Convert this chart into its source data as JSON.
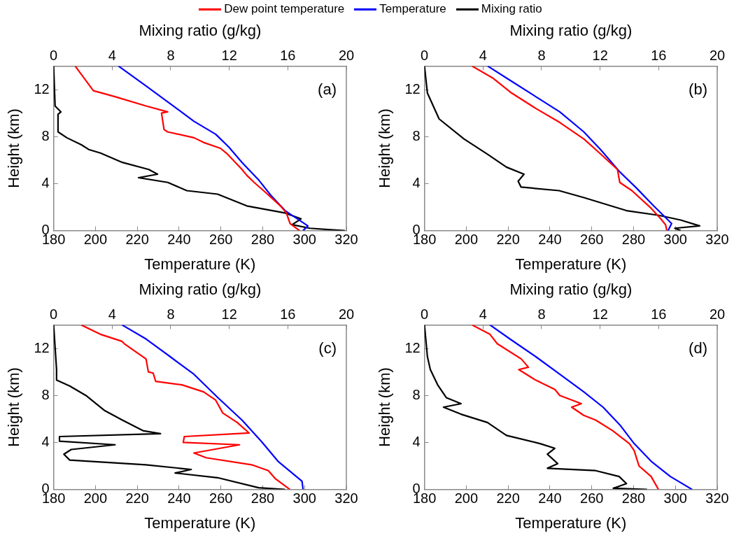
{
  "chart_data": [
    {
      "type": "line",
      "xlabel": "Temperature (K)",
      "x2label": "Mixing ratio (g/kg)",
      "ylabel": "Height (km)",
      "xlim": [
        180,
        320
      ],
      "xticks": [
        180,
        200,
        220,
        240,
        260,
        280,
        300,
        320
      ],
      "x2lim": [
        0,
        20
      ],
      "x2ticks": [
        0,
        4,
        8,
        12,
        16,
        20
      ],
      "ylim": [
        0,
        14
      ],
      "yticks": [
        0,
        4,
        8,
        12
      ],
      "grid": false,
      "legend": "top",
      "marker": "none",
      "annotations": [
        "(a)"
      ],
      "series": [
        {
          "name": "Dew point temperature",
          "color": "#ff0000",
          "x": [
            190.3,
            199,
            209.3,
            224.2,
            234.5,
            231.6,
            232.8,
            234.5,
            247.1,
            251.7,
            259.8,
            263.2,
            270.1,
            272.4,
            275.9,
            280.4,
            288.5,
            291.3,
            293.1,
            297.6
          ],
          "values": [
            14,
            11.9,
            11.4,
            10.6,
            10.1,
            10,
            8.6,
            8.4,
            7.9,
            7.5,
            7,
            6.5,
            5.2,
            4.7,
            4.1,
            3.4,
            2.1,
            1.5,
            0.6,
            0
          ]
        },
        {
          "name": "Temperature",
          "color": "#0000ff",
          "x": [
            211,
            224.2,
            235.7,
            247.1,
            257.5,
            263.8,
            270.1,
            278.1,
            283.9,
            290.7,
            301.6,
            299.3
          ],
          "values": [
            14,
            12.3,
            10.8,
            9.3,
            8.2,
            7.1,
            5.8,
            4.3,
            3,
            1.7,
            0.4,
            0
          ]
        },
        {
          "name": "Mixing ratio",
          "color": "#000000",
          "axis": "x2",
          "x": [
            0,
            0.1,
            0.5,
            0.3,
            0.3,
            0.9,
            1.9,
            2.4,
            3.2,
            4.7,
            6.5,
            7.1,
            5.8,
            7.8,
            9.1,
            11.2,
            13.2,
            15.8,
            16.9,
            16.3,
            17.5,
            19.1,
            19.9
          ],
          "values": [
            14,
            10.6,
            10.1,
            9.9,
            8.4,
            7.9,
            7.3,
            6.9,
            6.6,
            5.8,
            5.2,
            4.8,
            4.5,
            4.1,
            3.4,
            3.1,
            2.1,
            1.5,
            1,
            0.5,
            0.2,
            0.06,
            0
          ]
        }
      ]
    },
    {
      "type": "line",
      "xlabel": "Temperature (K)",
      "x2label": "Mixing ratio (g/kg)",
      "ylabel": "Height (km)",
      "xlim": [
        180,
        320
      ],
      "xticks": [
        180,
        200,
        220,
        240,
        260,
        280,
        300,
        320
      ],
      "x2lim": [
        0,
        20
      ],
      "x2ticks": [
        0,
        4,
        8,
        12,
        16,
        20
      ],
      "ylim": [
        0,
        14
      ],
      "yticks": [
        0,
        4,
        8,
        12
      ],
      "grid": false,
      "marker": "none",
      "annotations": [
        "(b)"
      ],
      "series": [
        {
          "color": "#ff0000",
          "x": [
            202.7,
            212.5,
            221.7,
            233.2,
            244.7,
            256.2,
            263.1,
            272.3,
            273.4,
            279.2,
            288.4,
            293,
            295.3,
            295.9
          ],
          "values": [
            14,
            13,
            11.7,
            10.4,
            9.2,
            7.8,
            6.7,
            5.2,
            4.1,
            3.4,
            1.9,
            1,
            0.5,
            0
          ]
        },
        {
          "color": "#0000ff",
          "x": [
            210.2,
            221.7,
            233.2,
            244.7,
            256.2,
            264.2,
            273.4,
            281.5,
            289.6,
            298.2,
            296.5
          ],
          "values": [
            14,
            12.7,
            11.4,
            10.1,
            8.4,
            6.9,
            5,
            3.6,
            2.1,
            0.6,
            0
          ]
        },
        {
          "color": "#000000",
          "axis": "x2",
          "x": [
            0,
            0.2,
            1,
            2.7,
            4.3,
            5.6,
            6.8,
            6.4,
            6.6,
            9.2,
            10.9,
            13.8,
            16,
            17.5,
            18.8,
            17.1,
            17.5
          ],
          "values": [
            14,
            11.7,
            9.5,
            7.8,
            6.5,
            5.4,
            4.8,
            4.2,
            3.7,
            3.4,
            2.8,
            1.7,
            1.3,
            0.9,
            0.4,
            0.2,
            0
          ]
        }
      ]
    },
    {
      "type": "line",
      "xlabel": "Temperature (K)",
      "x2label": "Mixing ratio (g/kg)",
      "ylabel": "Height (km)",
      "xlim": [
        180,
        320
      ],
      "xticks": [
        180,
        200,
        220,
        240,
        260,
        280,
        300,
        320
      ],
      "x2lim": [
        0,
        20
      ],
      "x2ticks": [
        0,
        4,
        8,
        12,
        16,
        20
      ],
      "ylim": [
        0,
        14
      ],
      "yticks": [
        0,
        4,
        8,
        12
      ],
      "grid": false,
      "marker": "none",
      "annotations": [
        "(c)"
      ],
      "series": [
        {
          "color": "#ff0000",
          "x": [
            193.2,
            200.1,
            202.4,
            212.7,
            213.8,
            224.2,
            225.3,
            227.6,
            228.8,
            241.4,
            251.7,
            257.5,
            260.9,
            267.8,
            273.5,
            242.5,
            242,
            268.9,
            247.1,
            252.9,
            274.7,
            282.7,
            286.1,
            293
          ],
          "values": [
            14,
            13.4,
            13.2,
            12.6,
            12.4,
            11.1,
            10,
            9.9,
            9.2,
            8.9,
            8.3,
            7.6,
            6.5,
            5.7,
            4.8,
            4.5,
            4,
            3.8,
            3.1,
            2.7,
            2.1,
            1.6,
            0.9,
            0
          ]
        },
        {
          "color": "#0000ff",
          "x": [
            212.7,
            224.2,
            235.7,
            247.1,
            258.6,
            270.1,
            279.3,
            287.3,
            298.8,
            299.3
          ],
          "values": [
            14,
            12.8,
            11.3,
            9.8,
            7.8,
            5.9,
            4.1,
            2.4,
            0.7,
            0
          ]
        },
        {
          "color": "#000000",
          "axis": "x2",
          "x": [
            0,
            0.2,
            0.2,
            1.1,
            2.2,
            3.5,
            4.7,
            6.1,
            7.3,
            0.4,
            0.4,
            4.2,
            1.2,
            0.7,
            1.1,
            6.3,
            9.4,
            8.3,
            11.2,
            14,
            15.8
          ],
          "values": [
            14,
            10.2,
            9.3,
            8.8,
            8,
            6.7,
            5.9,
            5,
            4.75,
            4.5,
            4.1,
            3.8,
            3.4,
            3,
            2.5,
            2.1,
            1.7,
            1.4,
            1,
            0.15,
            0
          ]
        }
      ]
    },
    {
      "type": "line",
      "xlabel": "Temperature (K)",
      "x2label": "Mixing ratio (g/kg)",
      "ylabel": "Height (km)",
      "xlim": [
        180,
        320
      ],
      "xticks": [
        180,
        200,
        220,
        240,
        260,
        280,
        300,
        320
      ],
      "x2lim": [
        0,
        20
      ],
      "x2ticks": [
        0,
        4,
        8,
        12,
        16,
        20
      ],
      "ylim": [
        0,
        14
      ],
      "yticks": [
        0,
        4,
        8,
        12
      ],
      "grid": false,
      "marker": "none",
      "annotations": [
        "(d)"
      ],
      "series": [
        {
          "color": "#ff0000",
          "x": [
            202.7,
            211.3,
            214.8,
            226.3,
            229.7,
            225.1,
            233.2,
            242.4,
            244.7,
            255,
            250.4,
            256.2,
            261.9,
            270,
            278,
            280.3,
            282.6,
            288.4,
            291.9
          ],
          "values": [
            14,
            13.2,
            12.4,
            11.1,
            10.4,
            10.2,
            9.3,
            8.5,
            8,
            7.3,
            7,
            6.3,
            5.9,
            5,
            3.9,
            3.3,
            2,
            1.1,
            0
          ]
        },
        {
          "color": "#0000ff",
          "x": [
            211.3,
            221.7,
            233.2,
            244.7,
            256.2,
            265.4,
            273.4,
            280.3,
            288.4,
            297.6,
            308
          ],
          "values": [
            14,
            12.7,
            11.3,
            9.8,
            8.3,
            7,
            5.5,
            3.9,
            2.4,
            1.1,
            0
          ]
        },
        {
          "color": "#000000",
          "axis": "x2",
          "x": [
            0,
            0.2,
            0.4,
            0.9,
            1.5,
            2.5,
            1.3,
            2.5,
            4.3,
            5.6,
            7.9,
            8.9,
            8.4,
            9.1,
            8.4,
            11.7,
            13.3,
            13.8,
            12.9,
            15.2
          ],
          "values": [
            14,
            11.3,
            10.2,
            8.9,
            7.8,
            7.3,
            7,
            6.4,
            5.7,
            4.6,
            3.9,
            3.5,
            3,
            2.2,
            1.8,
            1.6,
            1.1,
            0.5,
            0.1,
            0
          ]
        }
      ]
    }
  ]
}
